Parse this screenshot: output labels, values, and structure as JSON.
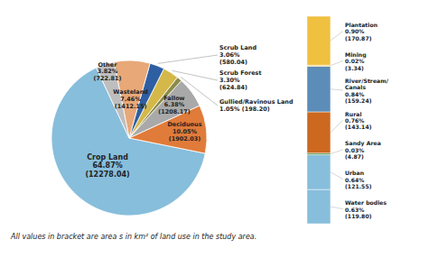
{
  "chart_data": [
    {
      "type": "pie",
      "categories": [
        "Crop Land",
        "Deciduous",
        "Fallow",
        "Gullied/Ravinous Land",
        "Scrub Forest",
        "Scrub Land",
        "Wasteland",
        "Other"
      ],
      "values": [
        64.87,
        10.05,
        6.38,
        1.05,
        3.3,
        3.06,
        7.46,
        3.82
      ],
      "value_labels": [
        "64.87%\n(12278.04)",
        "10.05%\n(1902.03)",
        "6.38%\n(1208.17)",
        "1.05% (198.20)",
        "3.30%\n(624.84)",
        "3.06%\n(580.04)",
        "7.46%\n(1412.15)",
        "3.82%\n(722.81)"
      ],
      "colors": [
        "#87BEDC",
        "#E07B3A",
        "#A9A9A9",
        "#8B8B4A",
        "#D4B84A",
        "#2E5FA3",
        "#E8A878",
        "#BEBEBE"
      ],
      "data_labels": true,
      "annotations": [
        "All values in bracket are area s in km² of land use in the study area."
      ]
    },
    {
      "type": "bar",
      "stacked": true,
      "tick_labels": false,
      "data_labels": true,
      "categories": [
        null
      ],
      "ylim": [
        0,
        3.82
      ],
      "series": [
        {
          "name": "Plantation",
          "color": "#F0C040",
          "values": [
            0.9
          ],
          "value_labels": [
            "0.90%\n(170.87)"
          ]
        },
        {
          "name": "Mining",
          "color": "#F0C040",
          "values": [
            0.02
          ],
          "value_labels": [
            "0.02%\n(3.34)"
          ]
        },
        {
          "name": "River/Stream/\nCanals",
          "color": "#5B8DB8",
          "values": [
            0.84
          ],
          "value_labels": [
            "0.84%\n(159.24)"
          ]
        },
        {
          "name": "Rural",
          "color": "#CC6820",
          "values": [
            0.76
          ],
          "value_labels": [
            "0.76%\n(143.14)"
          ]
        },
        {
          "name": "Sandy Area",
          "color": "#4A9040",
          "values": [
            0.03
          ],
          "value_labels": [
            "0.03%\n(4.87)"
          ]
        },
        {
          "name": "Urban",
          "color": "#87BEDC",
          "values": [
            0.64
          ],
          "value_labels": [
            "0.64%\n(121.55)"
          ]
        },
        {
          "name": "Water bodies",
          "color": "#87BEDC",
          "values": [
            0.63
          ],
          "value_labels": [
            "0.63%\n(119.80)"
          ]
        }
      ]
    }
  ]
}
